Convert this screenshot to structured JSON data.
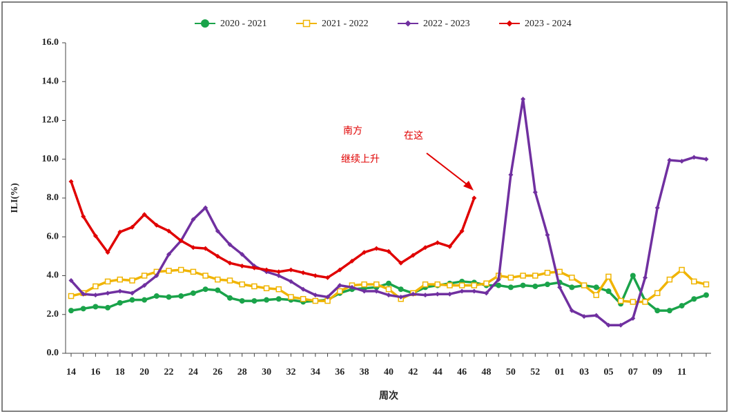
{
  "chart_data": {
    "type": "line",
    "x_label": "周次",
    "y_label": "ILI(%)",
    "categories": [
      "14",
      null,
      "16",
      null,
      "18",
      null,
      "20",
      null,
      "22",
      null,
      "24",
      null,
      "26",
      null,
      "28",
      null,
      "30",
      null,
      "32",
      null,
      "34",
      null,
      "36",
      null,
      "38",
      null,
      "40",
      null,
      "42",
      null,
      "44",
      null,
      "46",
      null,
      "48",
      null,
      "50",
      null,
      "52",
      null,
      "01",
      null,
      "03",
      null,
      "05",
      null,
      "07",
      null,
      "09",
      null,
      "11",
      null,
      null
    ],
    "ylim": [
      0,
      16
    ],
    "yticks": [
      {
        "value": 0,
        "label": "0.0"
      },
      {
        "value": 2,
        "label": "2.0"
      },
      {
        "value": 4,
        "label": "4.0"
      },
      {
        "value": 6,
        "label": "6.0"
      },
      {
        "value": 8,
        "label": "8.0"
      },
      {
        "value": 10,
        "label": "10.0"
      },
      {
        "value": 12,
        "label": "12.0"
      },
      {
        "value": 14,
        "label": "14.0"
      },
      {
        "value": 16,
        "label": "16.0"
      }
    ],
    "series": [
      {
        "name": "2020 - 2021",
        "color": "#1aa34a",
        "marker": "circle",
        "values": [
          2.2,
          2.3,
          2.4,
          2.35,
          2.6,
          2.75,
          2.75,
          2.95,
          2.9,
          2.95,
          3.1,
          3.3,
          3.25,
          2.85,
          2.7,
          2.7,
          2.75,
          2.8,
          2.75,
          2.65,
          2.7,
          2.75,
          3.1,
          3.3,
          3.35,
          3.4,
          3.6,
          3.3,
          3.1,
          3.4,
          3.5,
          3.6,
          3.7,
          3.65,
          3.5,
          3.5,
          3.4,
          3.5,
          3.45,
          3.55,
          3.65,
          3.4,
          3.5,
          3.4,
          3.2,
          2.55,
          4.0,
          2.7,
          2.2,
          2.2,
          2.45,
          2.8,
          3.0
        ]
      },
      {
        "name": "2021 - 2022",
        "color": "#f0b400",
        "marker": "square",
        "values": [
          2.95,
          3.1,
          3.45,
          3.7,
          3.8,
          3.75,
          4.0,
          4.2,
          4.25,
          4.3,
          4.2,
          4.0,
          3.8,
          3.75,
          3.55,
          3.45,
          3.35,
          3.3,
          2.9,
          2.8,
          2.7,
          2.7,
          3.2,
          3.5,
          3.55,
          3.55,
          3.3,
          2.8,
          3.1,
          3.55,
          3.55,
          3.5,
          3.5,
          3.5,
          3.6,
          4.0,
          3.9,
          4.0,
          4.0,
          4.15,
          4.2,
          3.9,
          3.5,
          3.0,
          3.95,
          2.7,
          2.65,
          2.65,
          3.1,
          3.8,
          4.3,
          3.7,
          3.55
        ]
      },
      {
        "name": "2022 - 2023",
        "color": "#7030a0",
        "marker": "diamond",
        "values": [
          3.75,
          3.05,
          3.0,
          3.1,
          3.2,
          3.1,
          3.5,
          4.0,
          5.1,
          5.8,
          6.9,
          7.5,
          6.3,
          5.6,
          5.1,
          4.5,
          4.2,
          4.0,
          3.7,
          3.3,
          3.0,
          2.9,
          3.5,
          3.4,
          3.2,
          3.2,
          3.0,
          2.9,
          3.05,
          3.0,
          3.05,
          3.05,
          3.2,
          3.2,
          3.1,
          3.8,
          9.2,
          13.1,
          8.3,
          6.1,
          3.4,
          2.2,
          1.9,
          1.95,
          1.45,
          1.45,
          1.8,
          3.9,
          7.5,
          9.95,
          9.9,
          10.1,
          10.0
        ]
      },
      {
        "name": "2023 - 2024",
        "color": "#e00000",
        "marker": "diamond",
        "values": [
          8.85,
          7.05,
          6.05,
          5.2,
          6.25,
          6.5,
          7.15,
          6.6,
          6.3,
          5.8,
          5.45,
          5.4,
          5.0,
          4.65,
          4.5,
          4.4,
          4.3,
          4.2,
          4.3,
          4.15,
          4.0,
          3.9,
          4.3,
          4.75,
          5.2,
          5.4,
          5.25,
          4.65,
          5.05,
          5.45,
          5.7,
          5.5,
          6.3,
          8.0,
          null,
          null,
          null,
          null,
          null,
          null,
          null,
          null,
          null,
          null,
          null,
          null,
          null,
          null,
          null,
          null,
          null,
          null,
          null
        ]
      }
    ],
    "annotations": [
      "南方",
      "在这",
      "继续上升"
    ]
  }
}
